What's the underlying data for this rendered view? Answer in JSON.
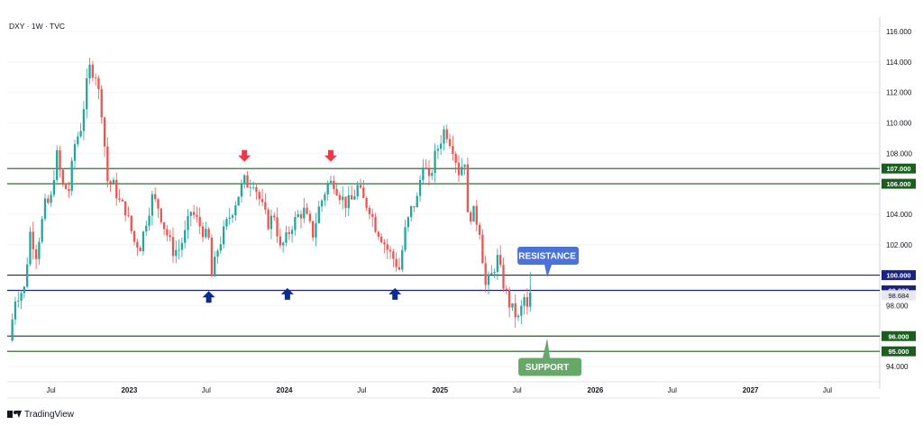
{
  "header": {
    "symbol": "DXY · 1W · TVC"
  },
  "footer": {
    "brand": "TradingView",
    "logo_icon": "tradingview-logo-icon"
  },
  "colors": {
    "up": "#26a69a",
    "down": "#ef5350",
    "green_line": "#1b5e20",
    "blue_line": "#1a237e",
    "resistance_fill": "#4a72d9",
    "support_fill": "#66a867",
    "arrow_red": "#f23645",
    "arrow_blue": "#0d2a8c",
    "grid": "#f0f3fa",
    "axis_text": "#131722"
  },
  "chart_data": {
    "type": "candlestick",
    "x_axis": {
      "range": [
        "2022-03-20",
        "2027-11-01"
      ],
      "ticks": [
        {
          "date": "2022-07-01",
          "label": "Jul",
          "bold": false
        },
        {
          "date": "2023-01-01",
          "label": "2023",
          "bold": true
        },
        {
          "date": "2023-07-01",
          "label": "Jul",
          "bold": false
        },
        {
          "date": "2024-01-01",
          "label": "2024",
          "bold": true
        },
        {
          "date": "2024-07-01",
          "label": "Jul",
          "bold": false
        },
        {
          "date": "2025-01-01",
          "label": "2025",
          "bold": true
        },
        {
          "date": "2025-07-01",
          "label": "Jul",
          "bold": false
        },
        {
          "date": "2026-01-01",
          "label": "2026",
          "bold": true
        },
        {
          "date": "2026-07-01",
          "label": "Jul",
          "bold": false
        },
        {
          "date": "2027-01-01",
          "label": "2027",
          "bold": true
        },
        {
          "date": "2027-07-01",
          "label": "Jul",
          "bold": false
        }
      ]
    },
    "y_axis": {
      "range": [
        93.0,
        117.0
      ],
      "ticks": [
        "116.000",
        "114.000",
        "112.000",
        "110.000",
        "108.000",
        "104.000",
        "102.000",
        "98.000",
        "94.000"
      ]
    },
    "horizontal_levels": [
      {
        "value": 107.0,
        "label": "107.000",
        "color": "#1b5e20"
      },
      {
        "value": 106.0,
        "label": "106.000",
        "color": "#1b5e20"
      },
      {
        "value": 100.0,
        "label": "100.000",
        "color": "#1a237e"
      },
      {
        "value": 99.0,
        "label": "99.000",
        "color": "#1a237e"
      },
      {
        "value": 96.0,
        "label": "96.000",
        "color": "#1b5e20"
      },
      {
        "value": 95.0,
        "label": "95.000",
        "color": "#1b5e20"
      }
    ],
    "last_price": {
      "value": 98.684,
      "label": "98.684"
    },
    "price_path": [
      [
        "2022-03-25",
        95.7
      ],
      [
        "2022-04-08",
        98.5
      ],
      [
        "2022-04-29",
        99.1
      ],
      [
        "2022-05-13",
        102.8
      ],
      [
        "2022-05-27",
        101.4
      ],
      [
        "2022-06-17",
        104.6
      ],
      [
        "2022-06-30",
        104.8
      ],
      [
        "2022-07-14",
        108.0
      ],
      [
        "2022-07-29",
        105.8
      ],
      [
        "2022-08-12",
        105.6
      ],
      [
        "2022-08-26",
        108.6
      ],
      [
        "2022-09-09",
        109.7
      ],
      [
        "2022-09-23",
        112.5
      ],
      [
        "2022-09-30",
        113.6
      ],
      [
        "2022-10-14",
        113.2
      ],
      [
        "2022-10-28",
        110.8
      ],
      [
        "2022-11-11",
        106.2
      ],
      [
        "2022-11-25",
        105.9
      ],
      [
        "2022-12-09",
        104.8
      ],
      [
        "2022-12-23",
        104.3
      ],
      [
        "2023-01-13",
        102.2
      ],
      [
        "2023-01-27",
        101.9
      ],
      [
        "2023-02-10",
        103.6
      ],
      [
        "2023-02-24",
        105.1
      ],
      [
        "2023-03-10",
        104.5
      ],
      [
        "2023-03-24",
        103.2
      ],
      [
        "2023-04-14",
        101.6
      ],
      [
        "2023-04-28",
        101.7
      ],
      [
        "2023-05-12",
        102.7
      ],
      [
        "2023-05-26",
        104.2
      ],
      [
        "2023-06-09",
        103.6
      ],
      [
        "2023-06-23",
        102.9
      ],
      [
        "2023-07-07",
        102.3
      ],
      [
        "2023-07-14",
        99.9
      ],
      [
        "2023-07-28",
        101.7
      ],
      [
        "2023-08-18",
        103.4
      ],
      [
        "2023-09-01",
        104.3
      ],
      [
        "2023-09-15",
        105.3
      ],
      [
        "2023-09-29",
        106.2
      ],
      [
        "2023-10-06",
        106.0
      ],
      [
        "2023-10-20",
        106.2
      ],
      [
        "2023-11-03",
        105.0
      ],
      [
        "2023-11-17",
        103.9
      ],
      [
        "2023-11-24",
        103.4
      ],
      [
        "2023-12-08",
        104.0
      ],
      [
        "2023-12-22",
        101.7
      ],
      [
        "2024-01-05",
        102.4
      ],
      [
        "2024-01-19",
        103.3
      ],
      [
        "2024-02-02",
        103.9
      ],
      [
        "2024-02-16",
        104.2
      ],
      [
        "2024-03-08",
        102.7
      ],
      [
        "2024-03-22",
        104.4
      ],
      [
        "2024-04-12",
        106.0
      ],
      [
        "2024-04-26",
        106.1
      ],
      [
        "2024-05-10",
        105.3
      ],
      [
        "2024-05-24",
        104.7
      ],
      [
        "2024-06-07",
        104.9
      ],
      [
        "2024-06-21",
        105.8
      ],
      [
        "2024-07-05",
        104.9
      ],
      [
        "2024-07-19",
        104.4
      ],
      [
        "2024-08-02",
        103.2
      ],
      [
        "2024-08-16",
        102.5
      ],
      [
        "2024-08-30",
        101.7
      ],
      [
        "2024-09-13",
        101.1
      ],
      [
        "2024-09-27",
        100.4
      ],
      [
        "2024-10-11",
        102.9
      ],
      [
        "2024-10-25",
        104.3
      ],
      [
        "2024-11-08",
        105.0
      ],
      [
        "2024-11-22",
        107.5
      ],
      [
        "2024-12-06",
        106.1
      ],
      [
        "2024-12-20",
        107.8
      ],
      [
        "2025-01-10",
        109.5
      ],
      [
        "2025-01-17",
        109.3
      ],
      [
        "2025-01-31",
        108.4
      ],
      [
        "2025-02-14",
        106.8
      ],
      [
        "2025-02-28",
        107.6
      ],
      [
        "2025-03-07",
        103.8
      ],
      [
        "2025-03-21",
        104.1
      ],
      [
        "2025-04-04",
        103.0
      ],
      [
        "2025-04-18",
        99.3
      ],
      [
        "2025-05-02",
        100.0
      ],
      [
        "2025-05-16",
        101.1
      ],
      [
        "2025-05-30",
        99.4
      ],
      [
        "2025-06-13",
        98.1
      ],
      [
        "2025-06-27",
        97.4
      ],
      [
        "2025-07-04",
        97.1
      ],
      [
        "2025-07-18",
        98.5
      ],
      [
        "2025-07-25",
        97.7
      ],
      [
        "2025-08-01",
        98.684
      ]
    ],
    "annotations": [
      {
        "type": "callout",
        "label": "RESISTANCE",
        "anchor_date": "2025-09-10",
        "anchor_value": 99.5,
        "side": "above"
      },
      {
        "type": "callout",
        "label": "SUPPORT",
        "anchor_date": "2025-09-10",
        "anchor_value": 96.1,
        "side": "below"
      },
      {
        "type": "arrow-down",
        "date": "2023-09-29",
        "value": 107.8
      },
      {
        "type": "arrow-down",
        "date": "2024-04-19",
        "value": 107.8
      },
      {
        "type": "arrow-up",
        "date": "2023-07-07",
        "value": 98.6
      },
      {
        "type": "arrow-up",
        "date": "2024-01-08",
        "value": 98.8
      },
      {
        "type": "arrow-up",
        "date": "2024-09-17",
        "value": 98.8
      }
    ]
  }
}
